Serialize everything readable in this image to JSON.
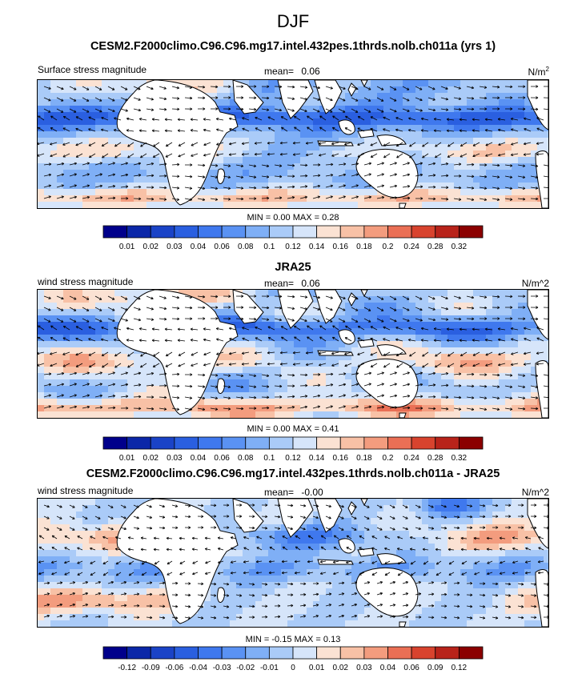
{
  "figure_title": "DJF",
  "panels": [
    {
      "title": "CESM2.F2000climo.C96.C96.mg17.intel.432pes.1thrds.nolb.ch011a (yrs 1)",
      "left_label": "Surface stress magnitude",
      "mean_label": "mean=",
      "mean_value": "0.06",
      "units": "N/m",
      "units_sup": "2",
      "stats": {
        "min_label": "MIN =",
        "min": "0.00",
        "max_label": "MAX =",
        "max": "0.28"
      },
      "colorbar": {
        "ticks": [
          "0.01",
          "0.02",
          "0.03",
          "0.04",
          "0.06",
          "0.08",
          "0.1",
          "0.12",
          "0.14",
          "0.16",
          "0.18",
          "0.2",
          "0.24",
          "0.28",
          "0.32"
        ],
        "colors": [
          "#00008b",
          "#0b27a8",
          "#1a43c7",
          "#2a5fe0",
          "#3f78ee",
          "#5a92f3",
          "#7faff6",
          "#aacbf8",
          "#d6e5fa",
          "#fbe2d3",
          "#f8c1a6",
          "#f39c7e",
          "#ea6f55",
          "#d8432e",
          "#b8231a",
          "#8b0000"
        ]
      }
    },
    {
      "title": "JRA25",
      "left_label": "wind stress magnitude",
      "mean_label": "mean=",
      "mean_value": "0.06",
      "units": "N/m^2",
      "units_sup": "",
      "stats": {
        "min_label": "MIN =",
        "min": "0.00",
        "max_label": "MAX =",
        "max": "0.41"
      },
      "colorbar": {
        "ticks": [
          "0.01",
          "0.02",
          "0.03",
          "0.04",
          "0.06",
          "0.08",
          "0.1",
          "0.12",
          "0.14",
          "0.16",
          "0.18",
          "0.2",
          "0.24",
          "0.28",
          "0.32"
        ],
        "colors": [
          "#00008b",
          "#0b27a8",
          "#1a43c7",
          "#2a5fe0",
          "#3f78ee",
          "#5a92f3",
          "#7faff6",
          "#aacbf8",
          "#d6e5fa",
          "#fbe2d3",
          "#f8c1a6",
          "#f39c7e",
          "#ea6f55",
          "#d8432e",
          "#b8231a",
          "#8b0000"
        ]
      }
    },
    {
      "title": "CESM2.F2000climo.C96.C96.mg17.intel.432pes.1thrds.nolb.ch011a - JRA25",
      "left_label": "wind stress magnitude",
      "mean_label": "mean=",
      "mean_value": "-0.00",
      "units": "N/m^2",
      "units_sup": "",
      "stats": {
        "min_label": "MIN =",
        "min": "-0.15",
        "max_label": "MAX =",
        "max": "0.13"
      },
      "colorbar": {
        "ticks": [
          "-0.12",
          "-0.09",
          "-0.06",
          "-0.04",
          "-0.03",
          "-0.02",
          "-0.01",
          "0",
          "0.01",
          "0.02",
          "0.03",
          "0.04",
          "0.06",
          "0.09",
          "0.12"
        ],
        "colors": [
          "#00008b",
          "#0b27a8",
          "#1a43c7",
          "#2a5fe0",
          "#3f78ee",
          "#5a92f3",
          "#7faff6",
          "#aacbf8",
          "#d6e5fa",
          "#fbe2d3",
          "#f8c1a6",
          "#f39c7e",
          "#ea6f55",
          "#d8432e",
          "#b8231a",
          "#8b0000"
        ]
      }
    }
  ],
  "chart_data": [
    {
      "type": "heatmap",
      "title": "CESM2.F2000climo.C96.C96.mg17.intel.432pes.1thrds.nolb.ch011a (yrs 1)",
      "variable": "Surface stress magnitude",
      "units": "N/m2",
      "mean": 0.06,
      "min": 0.0,
      "max": 0.28,
      "colorbar_levels": [
        0.01,
        0.02,
        0.03,
        0.04,
        0.06,
        0.08,
        0.1,
        0.12,
        0.14,
        0.16,
        0.18,
        0.2,
        0.24,
        0.28,
        0.32
      ]
    },
    {
      "type": "heatmap",
      "title": "JRA25",
      "variable": "wind stress magnitude",
      "units": "N/m^2",
      "mean": 0.06,
      "min": 0.0,
      "max": 0.41,
      "colorbar_levels": [
        0.01,
        0.02,
        0.03,
        0.04,
        0.06,
        0.08,
        0.1,
        0.12,
        0.14,
        0.16,
        0.18,
        0.2,
        0.24,
        0.28,
        0.32
      ]
    },
    {
      "type": "heatmap",
      "title": "CESM2.F2000climo.C96.C96.mg17.intel.432pes.1thrds.nolb.ch011a - JRA25",
      "variable": "wind stress magnitude",
      "units": "N/m^2",
      "mean": -0.0,
      "min": -0.15,
      "max": 0.13,
      "colorbar_levels": [
        -0.12,
        -0.09,
        -0.06,
        -0.04,
        -0.03,
        -0.02,
        -0.01,
        0,
        0.01,
        0.02,
        0.03,
        0.04,
        0.06,
        0.09,
        0.12
      ]
    }
  ]
}
